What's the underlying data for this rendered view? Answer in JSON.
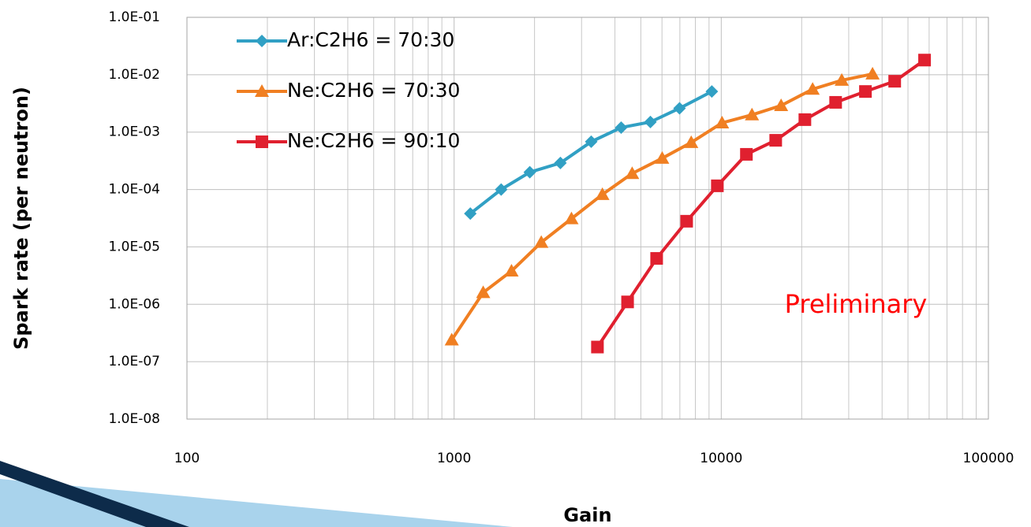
{
  "chart_data": {
    "type": "line",
    "xlabel": "Gain",
    "ylabel": "Spark rate (per neutron)",
    "annotation": "Preliminary",
    "annotation_color": "#ff0000",
    "xlog": true,
    "ylog": true,
    "grid": true,
    "minor_grid": true,
    "legend": "upper left",
    "xlim": [
      100,
      100000
    ],
    "xticks": [
      100,
      1000,
      10000,
      100000
    ],
    "ylim": [
      1e-08,
      0.1
    ],
    "yticks": [
      {
        "value": 1e-08,
        "label": "1.0E-08"
      },
      {
        "value": 1e-07,
        "label": "1.0E-07"
      },
      {
        "value": 1e-06,
        "label": "1.0E-06"
      },
      {
        "value": 1e-05,
        "label": "1.0E-05"
      },
      {
        "value": 0.0001,
        "label": "1.0E-04"
      },
      {
        "value": 0.001,
        "label": "1.0E-03"
      },
      {
        "value": 0.01,
        "label": "1.0E-02"
      },
      {
        "value": 0.1,
        "label": "1.0E-01"
      }
    ],
    "series": [
      {
        "name": "Ar:C2H6 = 70:30",
        "color": "#31a0c4",
        "marker": "diamond",
        "x": [
          1150,
          1500,
          1920,
          2500,
          3260,
          4220,
          5430,
          6980,
          9220
        ],
        "values": [
          3.8e-05,
          0.0001,
          0.0002,
          0.00029,
          0.00068,
          0.0012,
          0.0015,
          0.0026,
          0.0051
        ]
      },
      {
        "name": "Ne:C2H6 = 70:30",
        "color": "#f07f22",
        "marker": "triangle",
        "x": [
          980,
          1285,
          1640,
          2120,
          2750,
          3590,
          4640,
          6010,
          7720,
          10070,
          13030,
          16750,
          21980,
          28250,
          36840
        ],
        "values": [
          2.4e-07,
          1.6e-06,
          3.8e-06,
          1.2e-05,
          3.1e-05,
          8.2e-05,
          0.00019,
          0.00035,
          0.00066,
          0.00145,
          0.002,
          0.0029,
          0.0056,
          0.008,
          0.0103
        ]
      },
      {
        "name": "Ne:C2H6 = 90:10",
        "color": "#e0202f",
        "marker": "square",
        "x": [
          3440,
          4460,
          5730,
          7420,
          9670,
          12420,
          15990,
          20560,
          26800,
          34650,
          44590,
          57680
        ],
        "values": [
          1.8e-07,
          1.1e-06,
          6.3e-06,
          2.8e-05,
          0.000116,
          0.00041,
          0.00072,
          0.00165,
          0.0033,
          0.0051,
          0.0077,
          0.018
        ]
      }
    ]
  }
}
